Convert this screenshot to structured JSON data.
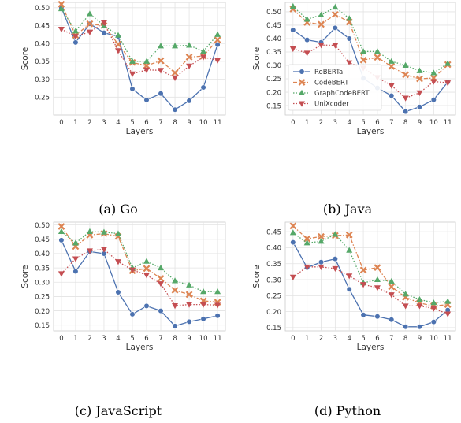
{
  "figure": {
    "legend": [
      {
        "name": "RoBERTa",
        "color": "#4c72b0",
        "marker": "circle",
        "dash": "solid"
      },
      {
        "name": "CodeBERT",
        "color": "#dd8452",
        "marker": "x",
        "dash": "dashdot"
      },
      {
        "name": "GraphCodeBERT",
        "color": "#55a868",
        "marker": "triangle-up",
        "dash": "dotted"
      },
      {
        "name": "UniXcoder",
        "color": "#c44e52",
        "marker": "triangle-down",
        "dash": "dotted"
      }
    ]
  },
  "chart_data": [
    {
      "type": "line",
      "caption": "(a)  Go",
      "xlabel": "Layers",
      "ylabel": "Score",
      "x": [
        0,
        1,
        2,
        3,
        4,
        5,
        6,
        7,
        8,
        9,
        10,
        11
      ],
      "yticks": [
        0.25,
        0.3,
        0.35,
        0.4,
        0.45,
        0.5
      ],
      "ylim": [
        0.2,
        0.515
      ],
      "grid": true,
      "legend": "none",
      "series": [
        {
          "name": "RoBERTa",
          "values": [
            0.5,
            0.403,
            0.455,
            0.43,
            0.42,
            0.273,
            0.242,
            0.26,
            0.215,
            0.24,
            0.277,
            0.397
          ]
        },
        {
          "name": "CodeBERT",
          "values": [
            0.51,
            0.423,
            0.455,
            0.45,
            0.398,
            0.347,
            0.338,
            0.352,
            0.318,
            0.362,
            0.365,
            0.41
          ]
        },
        {
          "name": "GraphCodeBERT",
          "values": [
            0.497,
            0.435,
            0.483,
            0.45,
            0.423,
            0.35,
            0.35,
            0.393,
            0.393,
            0.395,
            0.378,
            0.425
          ]
        },
        {
          "name": "UniXcoder",
          "values": [
            0.44,
            0.42,
            0.432,
            0.458,
            0.38,
            0.315,
            0.326,
            0.325,
            0.304,
            0.337,
            0.362,
            0.353
          ]
        }
      ]
    },
    {
      "type": "line",
      "caption": "(b)  Java",
      "xlabel": "Layers",
      "ylabel": "Score",
      "x": [
        0,
        1,
        2,
        3,
        4,
        5,
        6,
        7,
        8,
        9,
        10,
        11
      ],
      "yticks": [
        0.15,
        0.2,
        0.25,
        0.3,
        0.35,
        0.4,
        0.45,
        0.5
      ],
      "ylim": [
        0.115,
        0.535
      ],
      "grid": true,
      "legend": "lower-left",
      "series": [
        {
          "name": "RoBERTa",
          "values": [
            0.432,
            0.395,
            0.386,
            0.44,
            0.4,
            0.252,
            0.216,
            0.187,
            0.128,
            0.145,
            0.172,
            0.238
          ]
        },
        {
          "name": "CodeBERT",
          "values": [
            0.51,
            0.46,
            0.453,
            0.49,
            0.462,
            0.32,
            0.33,
            0.296,
            0.265,
            0.25,
            0.253,
            0.303
          ]
        },
        {
          "name": "GraphCodeBERT",
          "values": [
            0.52,
            0.472,
            0.488,
            0.517,
            0.475,
            0.352,
            0.352,
            0.315,
            0.3,
            0.28,
            0.272,
            0.307
          ]
        },
        {
          "name": "UniXcoder",
          "values": [
            0.362,
            0.346,
            0.376,
            0.375,
            0.31,
            0.29,
            0.255,
            0.225,
            0.178,
            0.198,
            0.24,
            0.235
          ]
        }
      ]
    },
    {
      "type": "line",
      "caption": "(c)  JavaScript",
      "xlabel": "Layers",
      "ylabel": "Score",
      "x": [
        0,
        1,
        2,
        3,
        4,
        5,
        6,
        7,
        8,
        9,
        10,
        11
      ],
      "yticks": [
        0.15,
        0.2,
        0.25,
        0.3,
        0.35,
        0.4,
        0.45,
        0.5
      ],
      "ylim": [
        0.13,
        0.51
      ],
      "grid": true,
      "legend": "none",
      "series": [
        {
          "name": "RoBERTa",
          "values": [
            0.447,
            0.338,
            0.407,
            0.4,
            0.265,
            0.188,
            0.217,
            0.2,
            0.147,
            0.162,
            0.172,
            0.183
          ]
        },
        {
          "name": "CodeBERT",
          "values": [
            0.495,
            0.425,
            0.465,
            0.47,
            0.46,
            0.34,
            0.348,
            0.313,
            0.272,
            0.257,
            0.235,
            0.23
          ]
        },
        {
          "name": "GraphCodeBERT",
          "values": [
            0.477,
            0.437,
            0.477,
            0.475,
            0.47,
            0.35,
            0.373,
            0.35,
            0.305,
            0.29,
            0.267,
            0.267
          ]
        },
        {
          "name": "UniXcoder",
          "values": [
            0.33,
            0.382,
            0.41,
            0.415,
            0.372,
            0.343,
            0.325,
            0.295,
            0.218,
            0.222,
            0.222,
            0.22
          ]
        }
      ]
    },
    {
      "type": "line",
      "caption": "(d)  Python",
      "xlabel": "Layers",
      "ylabel": "Score",
      "x": [
        0,
        1,
        2,
        3,
        4,
        5,
        6,
        7,
        8,
        9,
        10,
        11
      ],
      "yticks": [
        0.15,
        0.2,
        0.25,
        0.3,
        0.35,
        0.4,
        0.45
      ],
      "ylim": [
        0.14,
        0.48
      ],
      "grid": true,
      "legend": "none",
      "series": [
        {
          "name": "RoBERTa",
          "values": [
            0.417,
            0.338,
            0.355,
            0.365,
            0.27,
            0.19,
            0.185,
            0.175,
            0.153,
            0.153,
            0.168,
            0.205
          ]
        },
        {
          "name": "CodeBERT",
          "values": [
            0.468,
            0.428,
            0.435,
            0.438,
            0.44,
            0.33,
            0.338,
            0.278,
            0.245,
            0.227,
            0.218,
            0.222
          ]
        },
        {
          "name": "GraphCodeBERT",
          "values": [
            0.447,
            0.415,
            0.42,
            0.442,
            0.392,
            0.29,
            0.3,
            0.295,
            0.255,
            0.238,
            0.228,
            0.232
          ]
        },
        {
          "name": "UniXcoder",
          "values": [
            0.308,
            0.34,
            0.34,
            0.335,
            0.312,
            0.285,
            0.275,
            0.253,
            0.218,
            0.218,
            0.21,
            0.193
          ]
        }
      ]
    }
  ]
}
